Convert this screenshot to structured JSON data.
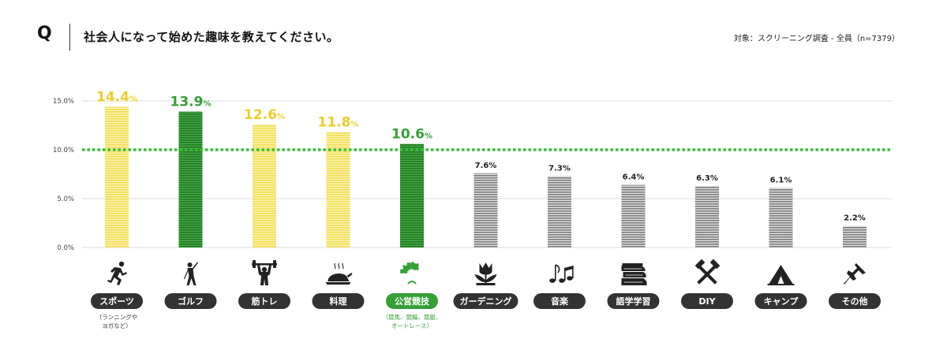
{
  "header": {
    "q_mark": "Q",
    "question": "社会人になって始めた趣味を教えてください。",
    "target": "対象：スクリーニング調査 - 全員（n=7379）"
  },
  "chart_data": {
    "type": "bar",
    "categories": [
      "スポーツ",
      "ゴルフ",
      "筋トレ",
      "料理",
      "公営競技",
      "ガーデニング",
      "音楽",
      "語学学習",
      "DIY",
      "キャンプ",
      "その他"
    ],
    "values": [
      14.4,
      13.9,
      12.6,
      11.8,
      10.6,
      7.6,
      7.3,
      6.4,
      6.3,
      6.1,
      2.2
    ],
    "value_labels": [
      "14.4",
      "13.9",
      "12.6",
      "11.8",
      "10.6",
      "7.6%",
      "7.3%",
      "6.4%",
      "6.3%",
      "6.1%",
      "2.2%"
    ],
    "percent_suffix": "%",
    "bar_colors": [
      "#f5e36a",
      "#2e8b2e",
      "#f5e36a",
      "#f5e36a",
      "#2e8b2e",
      "#8a8a8a",
      "#8a8a8a",
      "#8a8a8a",
      "#8a8a8a",
      "#8a8a8a",
      "#8a8a8a"
    ],
    "label_colors": [
      "#e8cf2a",
      "#35a035",
      "#e8cf2a",
      "#e8cf2a",
      "#35a035",
      "#222222",
      "#222222",
      "#222222",
      "#222222",
      "#222222",
      "#222222"
    ],
    "pill_colors": [
      "#333333",
      "#333333",
      "#333333",
      "#333333",
      "#35a035",
      "#333333",
      "#333333",
      "#333333",
      "#333333",
      "#333333",
      "#333333"
    ],
    "icons": [
      "runner-icon",
      "golfer-icon",
      "weightlifter-icon",
      "roast-chicken-icon",
      "laurel-wreath-icon",
      "tulip-icon",
      "music-note-icon",
      "books-icon",
      "hammer-tools-icon",
      "tent-icon",
      "pushpin-icon"
    ],
    "notes": [
      {
        "index": 0,
        "lines": [
          "（ランニングや",
          "ヨガなど）"
        ],
        "color": "#333333"
      },
      {
        "index": 4,
        "lines": [
          "（競馬、競輪、競艇、",
          "オートレース）"
        ],
        "color": "#35a035"
      }
    ],
    "y_ticks": [
      "0.0%",
      "5.0%",
      "10.0%",
      "15.0%"
    ],
    "y_tick_values": [
      0,
      5,
      10,
      15
    ],
    "ylim": [
      0,
      15
    ],
    "reference_line": {
      "value": 10,
      "color": "#35c035",
      "style": "dotted"
    },
    "grid": true,
    "title": "",
    "xlabel": "",
    "ylabel": ""
  }
}
